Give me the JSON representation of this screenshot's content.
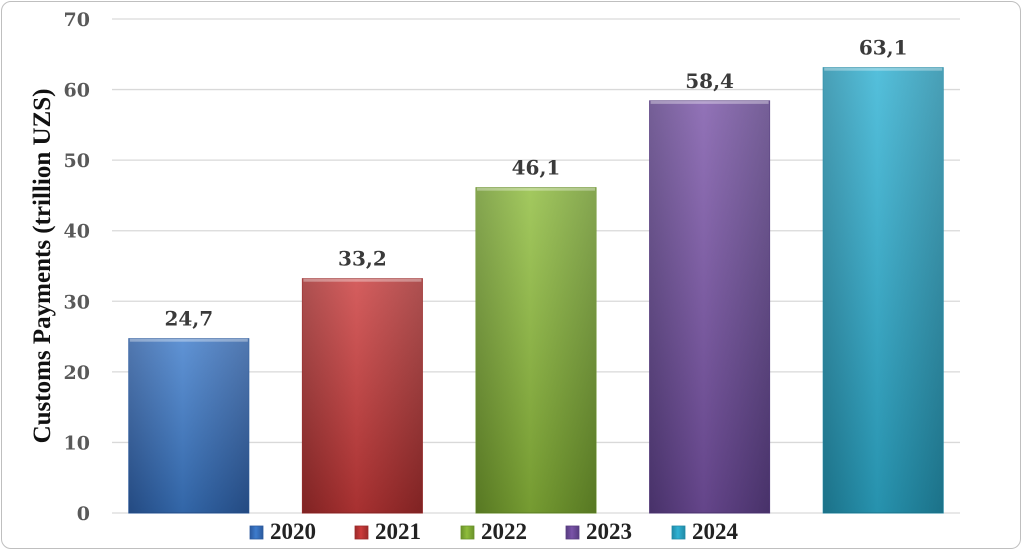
{
  "chart_data": {
    "type": "bar",
    "categories": [
      "2020",
      "2021",
      "2022",
      "2023",
      "2024"
    ],
    "values": [
      24.7,
      33.2,
      46.1,
      58.4,
      63.1
    ],
    "data_labels": [
      "24,7",
      "33,2",
      "46,1",
      "58,4",
      "63,1"
    ],
    "title": "",
    "xlabel": "",
    "ylabel": "Customs Payments (trillion UZS)",
    "ylim": [
      0,
      70
    ],
    "yticks": [
      0,
      10,
      20,
      30,
      40,
      50,
      60,
      70
    ],
    "grid": true,
    "legend": "bottom",
    "series_colors": [
      "#3d7ccc",
      "#cc3b3b",
      "#8fbd3c",
      "#7a54a8",
      "#2fb2d4"
    ],
    "series_colors_dark": [
      "#2b5a9e",
      "#9b2a2a",
      "#6a922a",
      "#573c80",
      "#218aa6"
    ]
  }
}
